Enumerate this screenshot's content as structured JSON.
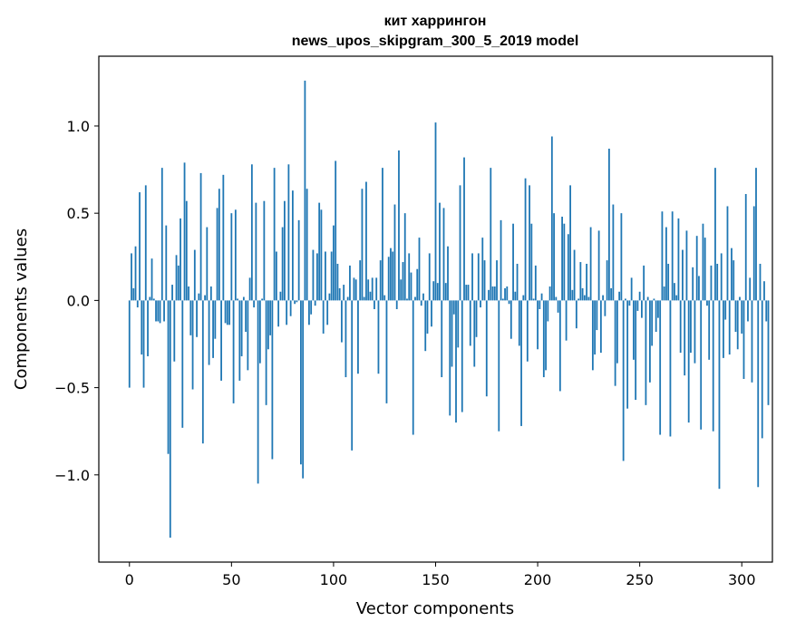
{
  "chart_data": {
    "type": "bar",
    "title": "кит харрингон",
    "subtitle": "news_upos_skipgram_300_5_2019 model",
    "xlabel": "Vector components",
    "ylabel": "Components values",
    "xlim": [
      -15,
      315
    ],
    "ylim": [
      -1.5,
      1.4
    ],
    "x_ticks": [
      0,
      50,
      100,
      150,
      200,
      250,
      300
    ],
    "x_tick_labels": [
      "0",
      "50",
      "100",
      "150",
      "200",
      "250",
      "300"
    ],
    "y_ticks": [
      -1.0,
      -0.5,
      0.0,
      0.5,
      1.0
    ],
    "y_tick_labels": [
      "−1.0",
      "−0.5",
      "0.0",
      "0.5",
      "1.0"
    ],
    "bar_color": "#1f77b4",
    "grid": false,
    "values": [
      -0.5,
      0.27,
      0.07,
      0.31,
      -0.04,
      0.62,
      -0.31,
      -0.5,
      0.66,
      -0.32,
      0.02,
      0.24,
      0.01,
      -0.12,
      -0.12,
      -0.13,
      0.76,
      -0.12,
      0.43,
      -0.88,
      -1.36,
      0.09,
      -0.35,
      0.26,
      0.2,
      0.47,
      -0.73,
      0.79,
      0.57,
      0.08,
      -0.2,
      -0.51,
      0.29,
      -0.21,
      0.04,
      0.73,
      -0.82,
      0.03,
      0.42,
      -0.37,
      0.08,
      -0.33,
      -0.22,
      0.53,
      0.64,
      -0.46,
      0.72,
      -0.13,
      -0.14,
      -0.14,
      0.5,
      -0.59,
      0.52,
      0.01,
      -0.46,
      -0.32,
      0.02,
      -0.18,
      -0.4,
      0.13,
      0.78,
      -0.04,
      0.56,
      -1.05,
      -0.36,
      0.01,
      0.57,
      -0.6,
      -0.28,
      -0.2,
      -0.91,
      0.76,
      0.28,
      -0.15,
      0.05,
      0.42,
      0.57,
      -0.14,
      0.78,
      -0.09,
      0.63,
      -0.02,
      -0.01,
      0.46,
      -0.94,
      -1.02,
      1.26,
      0.64,
      -0.14,
      -0.08,
      0.29,
      -0.03,
      0.27,
      0.56,
      0.52,
      -0.19,
      0.28,
      -0.14,
      0.04,
      0.28,
      0.43,
      0.8,
      0.21,
      0.07,
      -0.24,
      0.09,
      -0.44,
      0.02,
      0.2,
      -0.86,
      0.13,
      0.12,
      -0.42,
      0.23,
      0.64,
      0.02,
      0.68,
      0.12,
      0.05,
      0.13,
      -0.05,
      0.13,
      -0.42,
      0.23,
      0.76,
      0.03,
      -0.59,
      0.25,
      0.3,
      0.28,
      0.55,
      -0.05,
      0.86,
      0.12,
      0.22,
      0.5,
      0.01,
      0.27,
      0.16,
      -0.77,
      0.02,
      0.18,
      0.36,
      -0.03,
      0.04,
      -0.29,
      -0.19,
      0.27,
      -0.15,
      0.11,
      1.02,
      0.1,
      0.56,
      -0.44,
      0.53,
      0.1,
      0.31,
      -0.66,
      -0.38,
      -0.08,
      -0.7,
      -0.27,
      0.66,
      -0.64,
      0.82,
      0.09,
      0.09,
      -0.26,
      0.27,
      -0.38,
      -0.21,
      0.27,
      -0.04,
      0.36,
      0.23,
      -0.55,
      0.06,
      0.76,
      0.08,
      0.08,
      0.23,
      -0.75,
      0.46,
      0.01,
      0.07,
      0.08,
      -0.02,
      -0.22,
      0.44,
      0.05,
      0.21,
      -0.26,
      -0.72,
      0.03,
      0.7,
      -0.35,
      0.66,
      0.44,
      0.01,
      0.2,
      -0.28,
      -0.05,
      0.04,
      -0.44,
      -0.4,
      -0.12,
      0.08,
      0.94,
      0.5,
      0.02,
      -0.07,
      -0.52,
      0.48,
      0.44,
      -0.23,
      0.38,
      0.66,
      0.06,
      0.29,
      -0.16,
      0.01,
      0.22,
      0.07,
      0.03,
      0.21,
      0.02,
      0.42,
      -0.4,
      -0.31,
      -0.17,
      0.4,
      -0.3,
      0.03,
      -0.09,
      0.23,
      0.87,
      0.07,
      0.55,
      -0.49,
      -0.36,
      0.05,
      0.5,
      -0.92,
      0.01,
      -0.62,
      -0.03,
      0.13,
      -0.34,
      -0.57,
      -0.06,
      0.05,
      -0.1,
      0.2,
      -0.6,
      0.02,
      -0.47,
      -0.26,
      0.01,
      -0.18,
      -0.1,
      -0.77,
      0.51,
      0.08,
      0.42,
      0.21,
      -0.78,
      0.51,
      0.1,
      0.03,
      0.47,
      -0.3,
      0.29,
      -0.43,
      0.4,
      -0.7,
      -0.3,
      0.19,
      -0.36,
      0.37,
      0.14,
      -0.74,
      0.44,
      0.36,
      -0.03,
      -0.34,
      0.2,
      -0.75,
      0.76,
      0.21,
      -1.08,
      0.27,
      -0.33,
      -0.11,
      0.54,
      -0.31,
      0.3,
      0.23,
      -0.18,
      -0.28,
      0.02,
      -0.19,
      -0.45,
      0.61,
      -0.12,
      0.13,
      -0.47,
      0.54,
      0.76,
      -1.07,
      0.21,
      -0.79,
      0.11,
      -0.12,
      -0.6
    ]
  }
}
